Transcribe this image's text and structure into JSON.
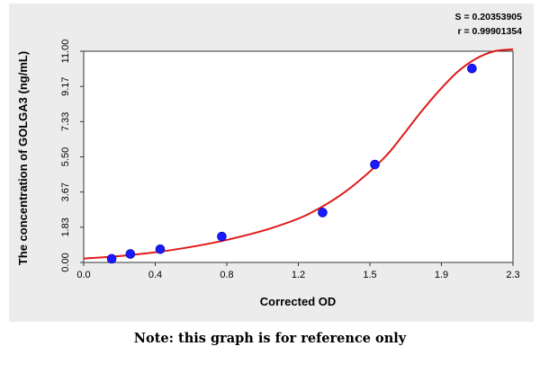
{
  "chart_data": {
    "type": "scatter",
    "xlabel": "Corrected OD",
    "ylabel": "The concentration of GOLGA3 (ng/mL)",
    "x_ticks": [
      "0.0",
      "0.4",
      "0.8",
      "1.2",
      "1.5",
      "1.9",
      "2.3"
    ],
    "y_ticks": [
      "0.00",
      "1.83",
      "3.67",
      "5.50",
      "7.33",
      "9.17",
      "11.00"
    ],
    "xlim": [
      0,
      2.3
    ],
    "ylim": [
      0,
      11
    ],
    "grid": false,
    "points": {
      "x": [
        0.15,
        0.25,
        0.41,
        0.74,
        1.28,
        1.56,
        2.08
      ],
      "y": [
        0.19,
        0.44,
        0.69,
        1.35,
        2.6,
        5.1,
        10.1
      ]
    },
    "fit_curve": {
      "x": [
        0.0,
        0.2,
        0.4,
        0.6,
        0.8,
        1.0,
        1.2,
        1.4,
        1.6,
        1.7,
        1.8,
        1.9,
        2.0,
        2.1,
        2.2,
        2.3
      ],
      "y": [
        0.2,
        0.34,
        0.55,
        0.85,
        1.25,
        1.77,
        2.5,
        3.67,
        5.35,
        6.5,
        7.75,
        8.9,
        9.9,
        10.6,
        11.0,
        11.1
      ]
    },
    "point_color": "#1a1aff",
    "curve_color": "#e01a1a",
    "stats": [
      "S = 0.20353905",
      "r = 0.99901354"
    ]
  },
  "note": "Note: this graph is for reference only"
}
